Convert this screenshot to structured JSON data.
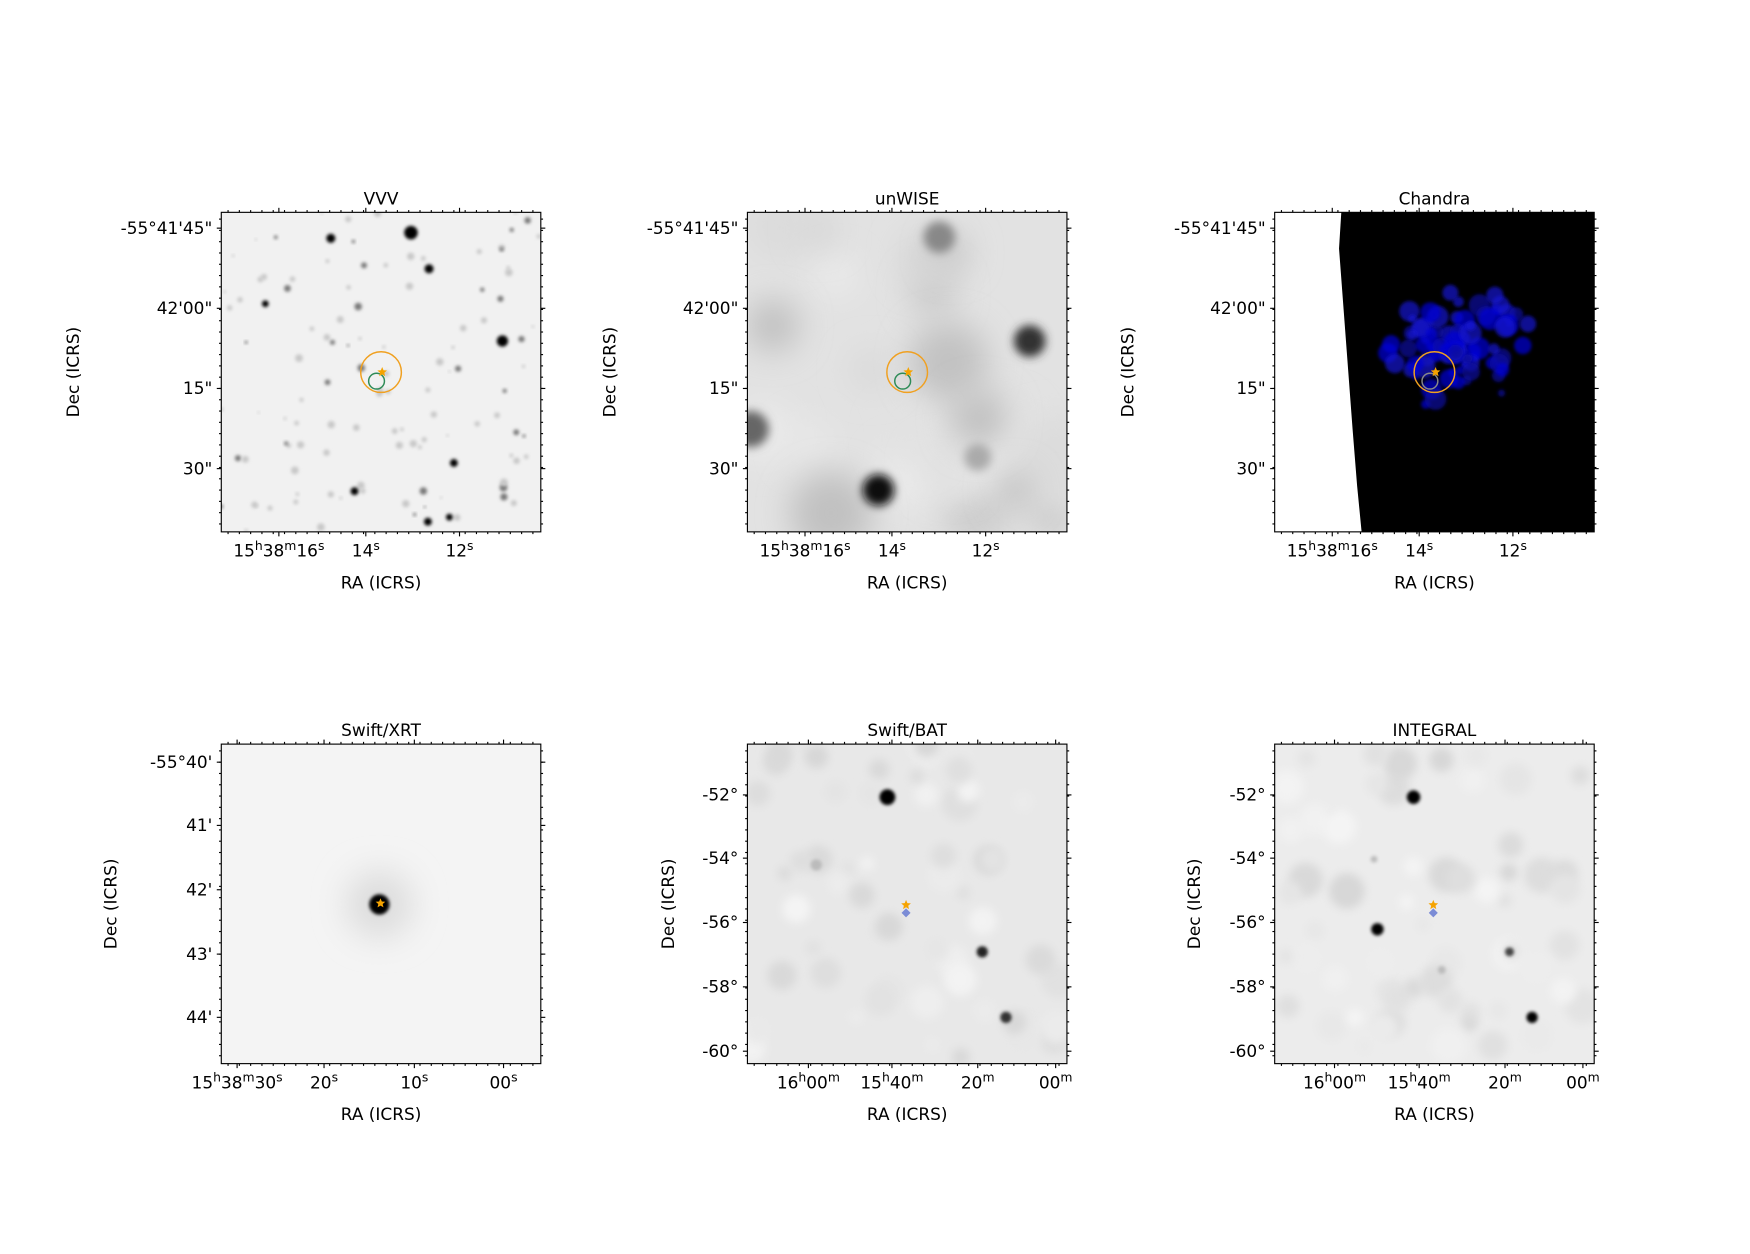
{
  "panels": [
    {
      "title": "VVV",
      "x_label": "RA (ICRS)",
      "y_label": "Dec (ICRS)",
      "x_ticks": [
        "15h38m16s",
        "14s",
        "12s"
      ],
      "y_ticks": [
        "-55°41'45\"",
        "42'00\"",
        "15\"",
        "30\""
      ]
    },
    {
      "title": "unWISE",
      "x_label": "RA (ICRS)",
      "y_label": "Dec (ICRS)",
      "x_ticks": [
        "15h38m16s",
        "14s",
        "12s"
      ],
      "y_ticks": [
        "-55°41'45\"",
        "42'00\"",
        "15\"",
        "30\""
      ]
    },
    {
      "title": "Chandra",
      "x_label": "RA (ICRS)",
      "y_label": "Dec (ICRS)",
      "x_ticks": [
        "15h38m16s",
        "14s",
        "12s"
      ],
      "y_ticks": [
        "-55°41'45\"",
        "42'00\"",
        "15\"",
        "30\""
      ]
    },
    {
      "title": "Swift/XRT",
      "x_label": "RA (ICRS)",
      "y_label": "Dec (ICRS)",
      "x_ticks": [
        "15h38m30s",
        "20s",
        "10s",
        "00s"
      ],
      "y_ticks": [
        "-55°40'",
        "41'",
        "42'",
        "43'",
        "44'"
      ]
    },
    {
      "title": "Swift/BAT",
      "x_label": "RA (ICRS)",
      "y_label": "Dec (ICRS)",
      "x_ticks": [
        "16h00m",
        "15h40m",
        "20m",
        "00m"
      ],
      "y_ticks": [
        "-52°",
        "-54°",
        "-56°",
        "-58°",
        "-60°"
      ]
    },
    {
      "title": "INTEGRAL",
      "x_label": "RA (ICRS)",
      "y_label": "Dec (ICRS)",
      "x_ticks": [
        "16h00m",
        "15h40m",
        "20m",
        "00m"
      ],
      "y_ticks": [
        "-52°",
        "-54°",
        "-56°",
        "-58°",
        "-60°"
      ]
    }
  ]
}
